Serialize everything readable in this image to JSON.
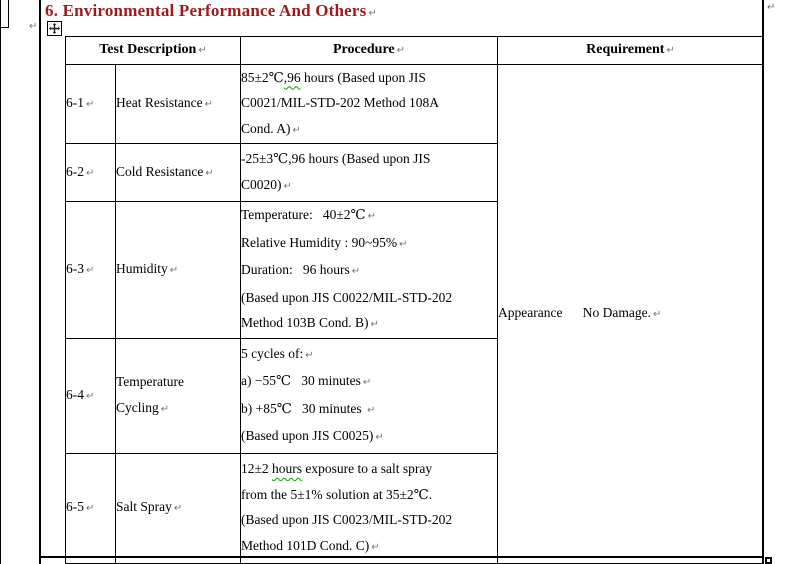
{
  "title": {
    "text": "6. Environmental Performance And Others",
    "color": "#9b1b1b",
    "mark": "↵"
  },
  "marks": {
    "pilcrow": "↵"
  },
  "colors": {
    "border": "#000000",
    "squiggle_green": "#00a000",
    "mark_gray": "#757575"
  },
  "table": {
    "headers": [
      "Test Description↵",
      "Procedure↵",
      "Requirement↵"
    ],
    "requirement": "Appearance      No Damage.↵",
    "rows": [
      {
        "id": "6-1↵",
        "test": [
          "Heat Resistance↵"
        ],
        "procedure": [
          "85±2℃⟦,96⟧ hours (Based upon JIS",
          "C0021/MIL-STD-202 Method 108A",
          "Cond. A)↵"
        ]
      },
      {
        "id": "6-2↵",
        "test": [
          "Cold Resistance↵"
        ],
        "procedure": [
          "-25±3℃,96 hours (Based upon JIS",
          "C0020)↵"
        ]
      },
      {
        "id": "6-3↵",
        "test": [
          "Humidity↵"
        ],
        "procedure": [
          "Temperature:   40±2℃↵",
          "Relative Humidity : 90~95%↵",
          "Duration:   96 hours↵",
          "(Based upon JIS C0022/MIL-STD-202",
          "Method 103B Cond. B)↵"
        ]
      },
      {
        "id": "6-4↵",
        "test": [
          "Temperature",
          "Cycling↵"
        ],
        "procedure": [
          "5 cycles of:↵",
          "a) −55℃   30 minutes↵",
          "b) +85℃   30 minutes ↵",
          "(Based upon JIS C0025)↵"
        ]
      },
      {
        "id": "6-5↵",
        "test": [
          "Salt Spray↵"
        ],
        "procedure": [
          "12±2 ⟦hours⟧ exposure to a salt spray",
          "from the 5±1% solution at 35±2℃.",
          "(Based upon JIS C0023/MIL-STD-202",
          "Method 101D Cond. C)↵"
        ]
      }
    ]
  }
}
